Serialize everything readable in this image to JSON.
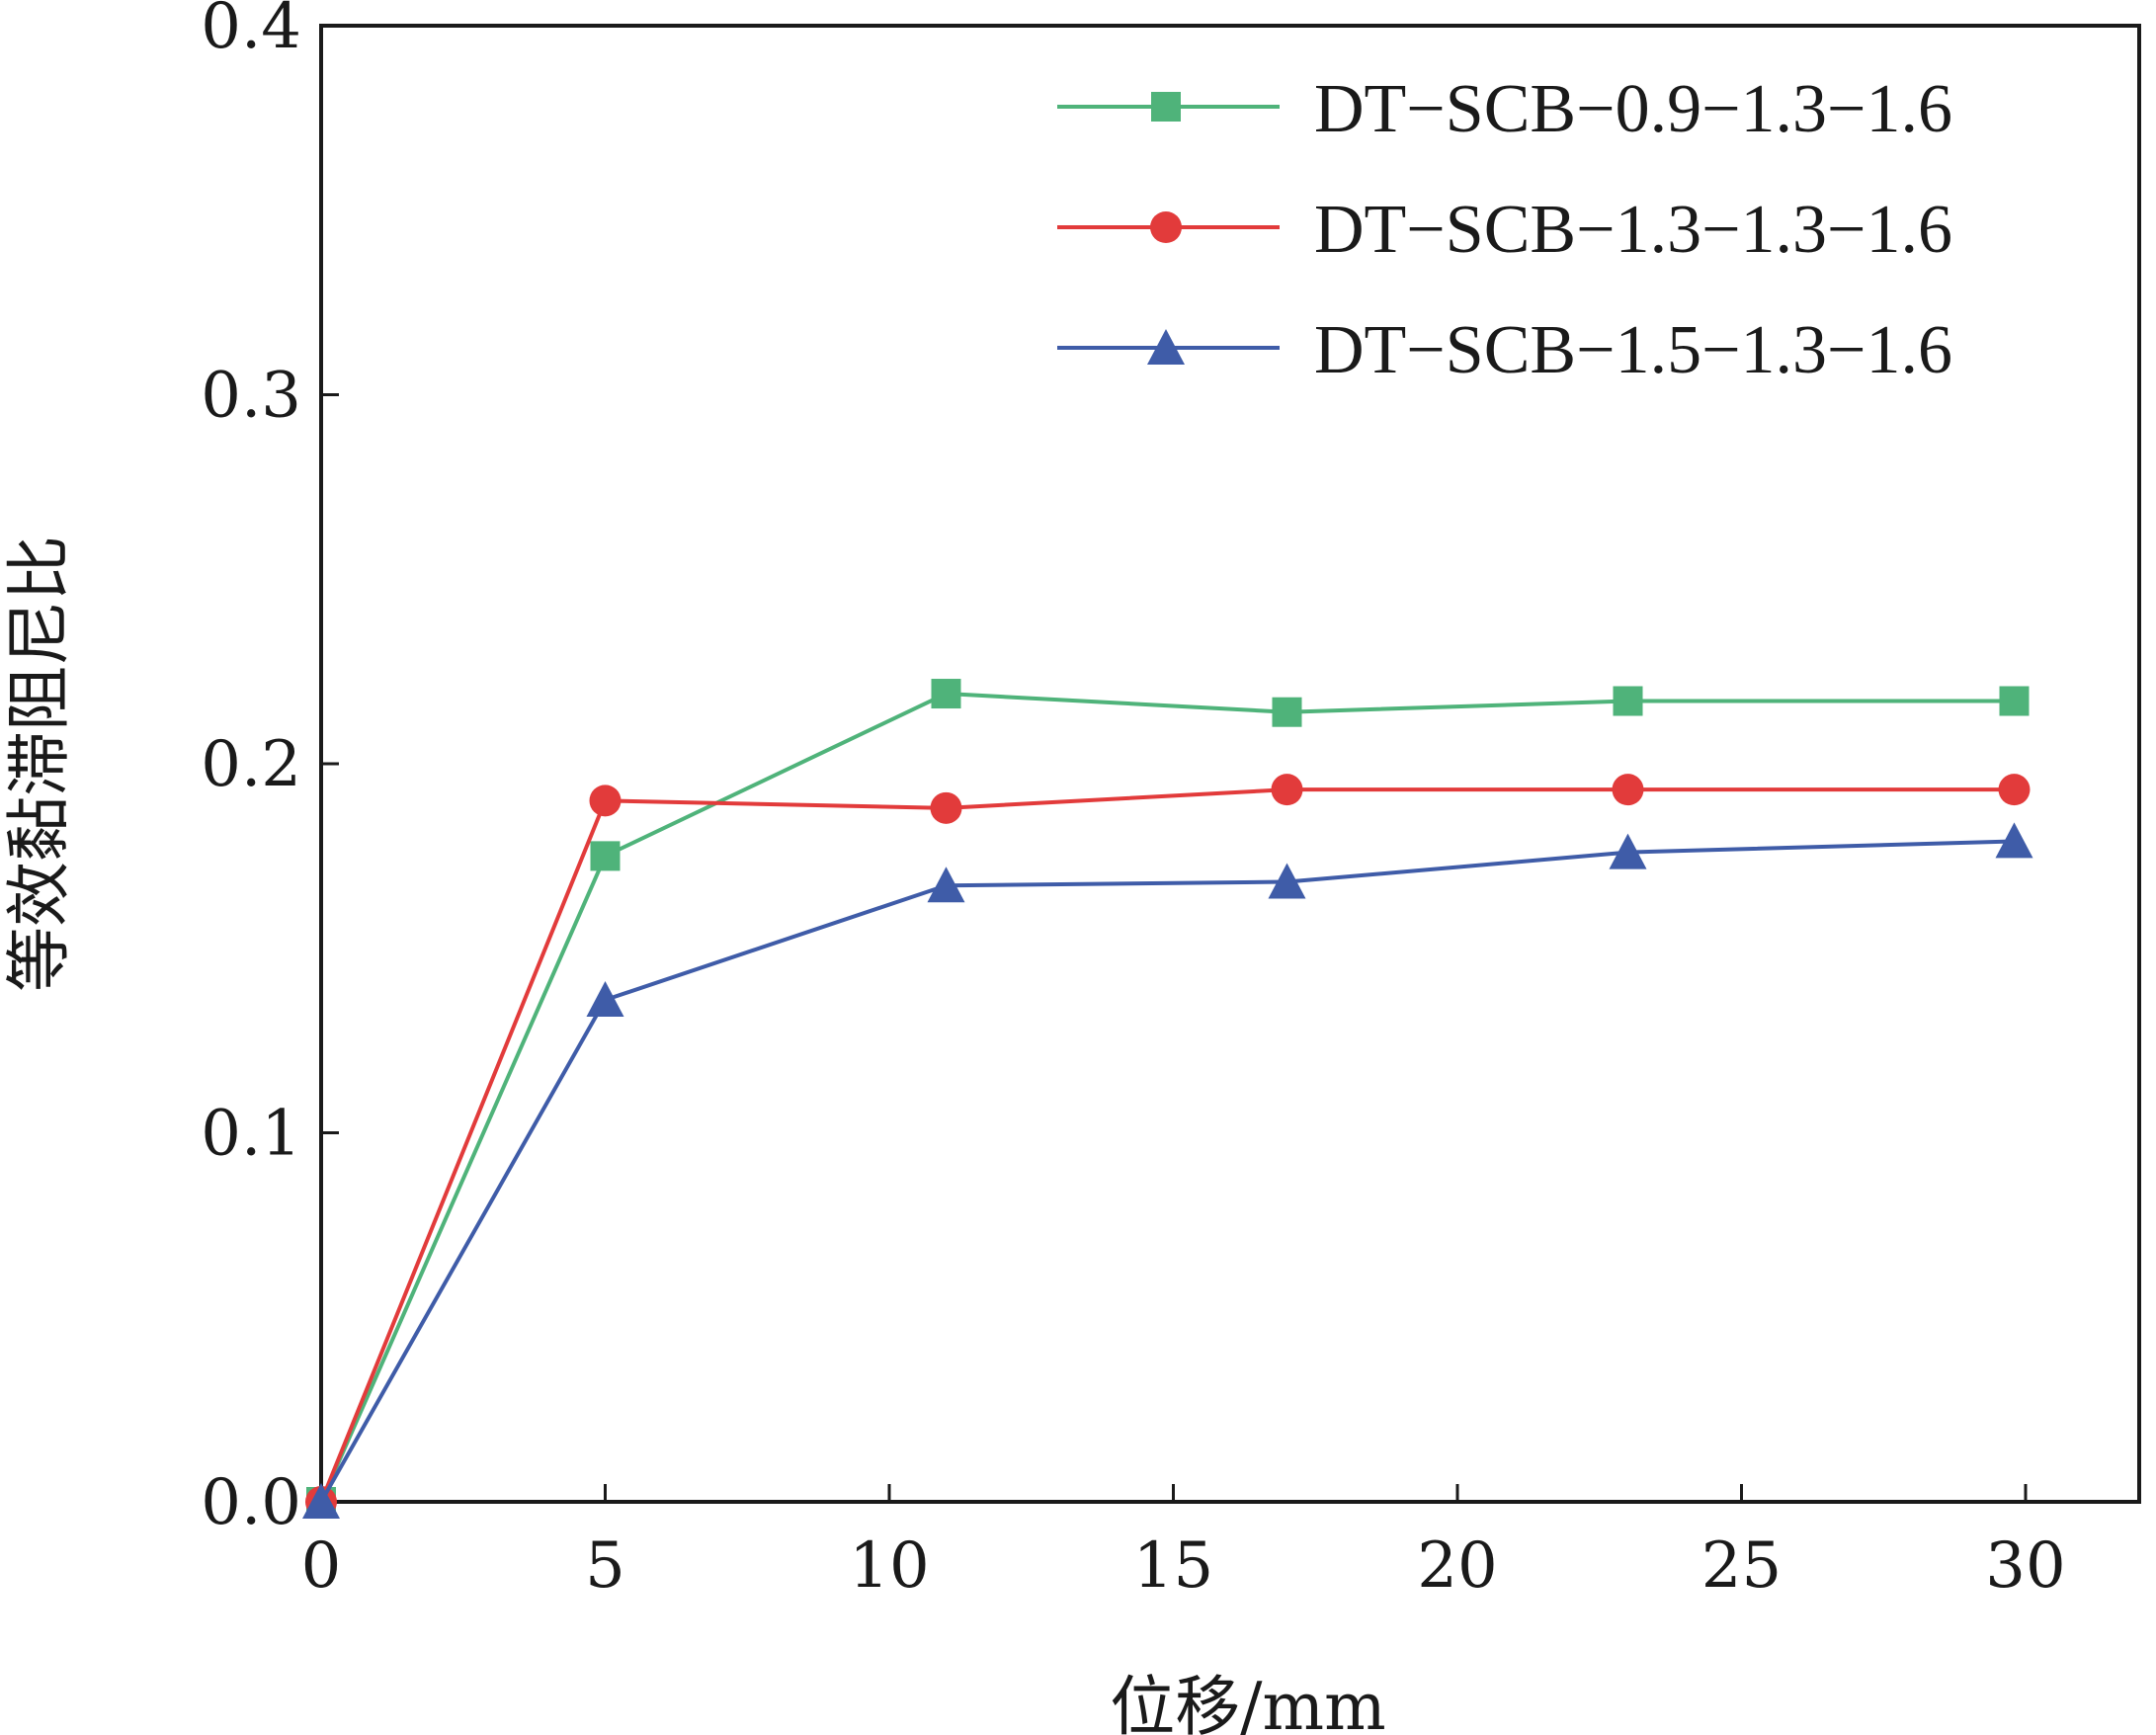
{
  "chart_data": {
    "type": "line",
    "title": "",
    "xlabel": "位移/mm",
    "ylabel": "等效黏滞阻尼比",
    "xlim": [
      0,
      32
    ],
    "ylim": [
      0,
      0.4
    ],
    "x_ticks": [
      0,
      5,
      10,
      15,
      20,
      25,
      30
    ],
    "x_tick_labels": [
      "0",
      "5",
      "10",
      "15",
      "20",
      "25",
      "30"
    ],
    "y_ticks": [
      0,
      0.1,
      0.2,
      0.3,
      0.4
    ],
    "y_tick_labels": [
      "0.0",
      "0.1",
      "0.2",
      "0.3",
      "0.4"
    ],
    "grid": false,
    "legend_position": "top-right",
    "series": [
      {
        "name": "DT−SCB−0.9−1.3−1.6",
        "color": "#4fb37a",
        "marker": "square",
        "x": [
          0,
          5,
          11,
          17,
          23,
          29.8
        ],
        "y": [
          0,
          0.175,
          0.219,
          0.214,
          0.217,
          0.217
        ]
      },
      {
        "name": "DT−SCB−1.3−1.3−1.6",
        "color": "#e23b3b",
        "marker": "circle",
        "x": [
          0,
          5,
          11,
          17,
          23,
          29.8
        ],
        "y": [
          0,
          0.19,
          0.188,
          0.193,
          0.193,
          0.193
        ]
      },
      {
        "name": "DT−SCB−1.5−1.3−1.6",
        "color": "#3f5ca8",
        "marker": "triangle",
        "x": [
          0,
          5,
          11,
          17,
          23,
          29.8
        ],
        "y": [
          0,
          0.136,
          0.167,
          0.168,
          0.176,
          0.179
        ]
      }
    ]
  }
}
